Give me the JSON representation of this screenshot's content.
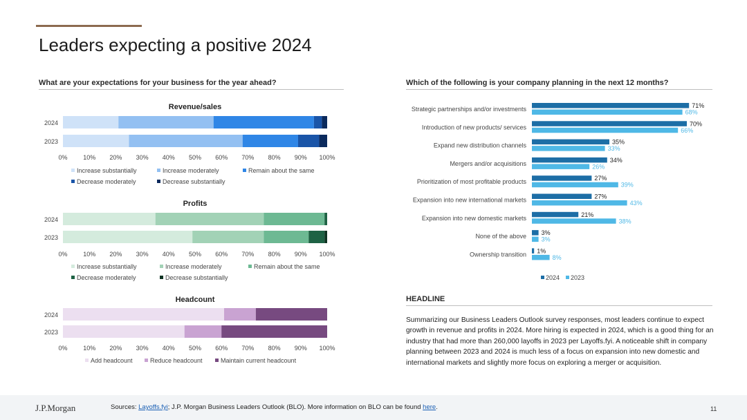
{
  "page": {
    "title": "Leaders expecting a positive 2024",
    "page_number": "11",
    "logo": "J.P.Morgan",
    "footer": {
      "prefix": "Sources: ",
      "link1": "Layoffs.fyi",
      "middle": "; J.P. Morgan Business Leaders Outlook (BLO). More information on BLO can be found ",
      "link2": "here",
      "suffix": "."
    }
  },
  "left_section": {
    "heading": "What are your expectations for your business for the year ahead?"
  },
  "right_section": {
    "heading": "Which of the following is your company planning in the next 12 months?"
  },
  "headline": {
    "heading": "HEADLINE",
    "body": "Summarizing our Business Leaders Outlook survey responses, most leaders continue to expect growth in revenue and profits in 2024. More hiring is expected in 2024, which is a good thing for an industry that had more than 260,000 layoffs in 2023 per Layoffs.fyi. A noticeable shift in company planning between 2023 and 2024 is much less of a focus on expansion into new domestic and international markets and slightly more focus on exploring a merger or acquisition."
  },
  "chart_data": [
    {
      "type": "bar",
      "orientation": "horizontal",
      "stacked": true,
      "title": "Revenue/sales",
      "categories": [
        "2024",
        "2023"
      ],
      "xlim": [
        0,
        100
      ],
      "x_ticks": [
        "0%",
        "10%",
        "20%",
        "30%",
        "40%",
        "50%",
        "60%",
        "70%",
        "80%",
        "90%",
        "100%"
      ],
      "legend_position": "bottom",
      "series": [
        {
          "name": "Increase substantially",
          "values": [
            21,
            25
          ],
          "color": "#cfe2f8"
        },
        {
          "name": "Increase moderately",
          "values": [
            36,
            43
          ],
          "color": "#93c0f2"
        },
        {
          "name": "Remain about the same",
          "values": [
            38,
            21
          ],
          "color": "#2f86e6"
        },
        {
          "name": "Decrease moderately",
          "values": [
            3,
            8
          ],
          "color": "#1a55a8"
        },
        {
          "name": "Decrease substantially",
          "values": [
            2,
            3
          ],
          "color": "#0b2a5c"
        }
      ]
    },
    {
      "type": "bar",
      "orientation": "horizontal",
      "stacked": true,
      "title": "Profits",
      "categories": [
        "2024",
        "2023"
      ],
      "xlim": [
        0,
        100
      ],
      "x_ticks": [
        "0%",
        "10%",
        "20%",
        "30%",
        "40%",
        "50%",
        "60%",
        "70%",
        "80%",
        "90%",
        "100%"
      ],
      "legend_position": "bottom",
      "series": [
        {
          "name": "Increase substantially",
          "values": [
            35,
            49
          ],
          "color": "#d4ebdd"
        },
        {
          "name": "Increase moderately",
          "values": [
            41,
            27
          ],
          "color": "#a2d2b6"
        },
        {
          "name": "Remain about the same",
          "values": [
            23,
            17
          ],
          "color": "#6db993"
        },
        {
          "name": "Decrease moderately",
          "values": [
            1,
            6
          ],
          "color": "#1e6244"
        },
        {
          "name": "Decrease substantially",
          "values": [
            0,
            1
          ],
          "color": "#0e3322"
        }
      ]
    },
    {
      "type": "bar",
      "orientation": "horizontal",
      "stacked": true,
      "title": "Headcount",
      "categories": [
        "2024",
        "2023"
      ],
      "xlim": [
        0,
        100
      ],
      "x_ticks": [
        "0%",
        "10%",
        "20%",
        "30%",
        "40%",
        "50%",
        "60%",
        "70%",
        "80%",
        "90%",
        "100%"
      ],
      "legend_position": "bottom",
      "series": [
        {
          "name": "Add headcount",
          "values": [
            61,
            46
          ],
          "color": "#ecdff0"
        },
        {
          "name": "Reduce headcount",
          "values": [
            12,
            14
          ],
          "color": "#c9a3d2"
        },
        {
          "name": "Maintain current headcount",
          "values": [
            27,
            40
          ],
          "color": "#774a80"
        }
      ]
    },
    {
      "type": "bar",
      "orientation": "horizontal",
      "stacked": false,
      "categories": [
        "Strategic partnerships and/or investments",
        "Introduction of new products/ services",
        "Expand new distribution channels",
        "Mergers and/or acquisitions",
        "Prioritization of most profitable products",
        "Expansion into new international markets",
        "Expansion into new domestic markets",
        "None of the above",
        "Ownership transition"
      ],
      "xlim": [
        0,
        100
      ],
      "legend_position": "bottom",
      "series": [
        {
          "name": "2024",
          "values": [
            71,
            70,
            35,
            34,
            27,
            27,
            21,
            3,
            1
          ],
          "labels": [
            "71%",
            "70%",
            "35%",
            "34%",
            "27%",
            "27%",
            "21%",
            "3%",
            "1%"
          ],
          "color": "#1d6ea6"
        },
        {
          "name": "2023",
          "values": [
            68,
            66,
            33,
            26,
            39,
            43,
            38,
            3,
            8
          ],
          "labels": [
            "68%",
            "66%",
            "33%",
            "26%",
            "39%",
            "43%",
            "38%",
            "3%",
            "8%"
          ],
          "color": "#4fb8e6"
        }
      ]
    }
  ]
}
